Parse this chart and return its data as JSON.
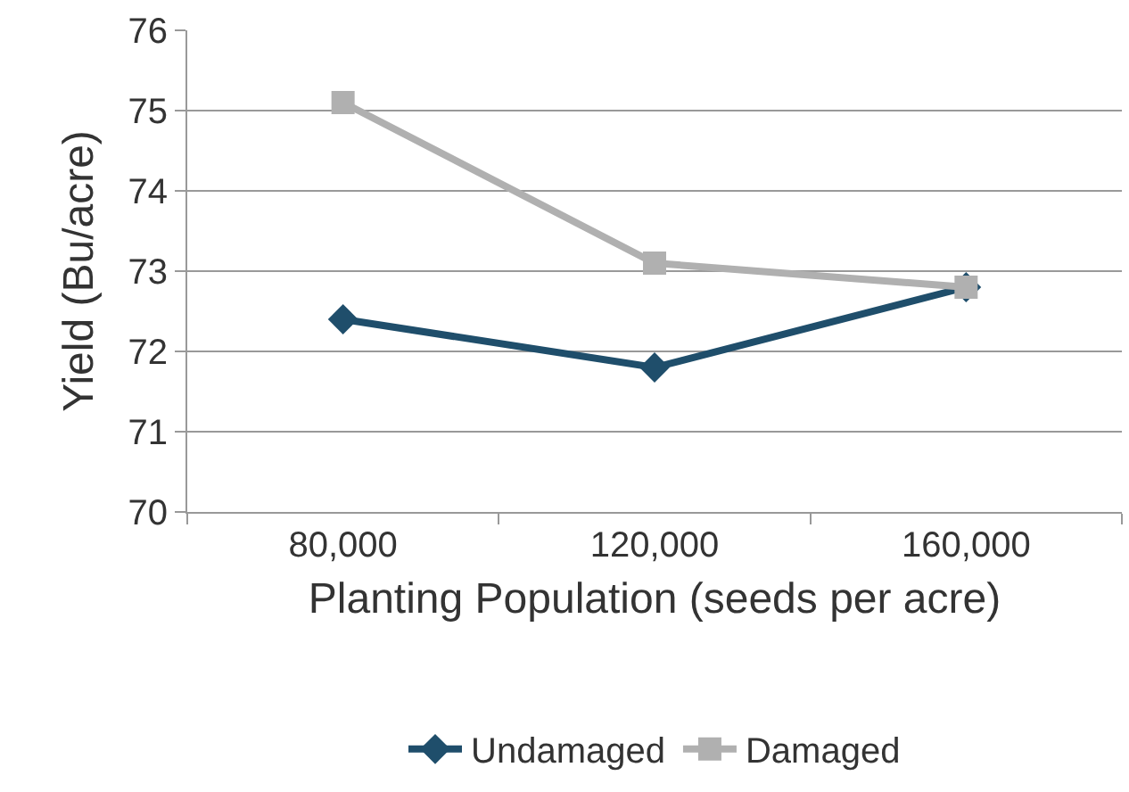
{
  "chart_data": {
    "type": "line",
    "xlabel": "Planting Population (seeds per acre)",
    "ylabel": "Yield (Bu/acre)",
    "categories": [
      "80,000",
      "120,000",
      "160,000"
    ],
    "series": [
      {
        "name": "Undamaged",
        "color": "#1f4e6b",
        "marker": "diamond",
        "values": [
          72.4,
          71.8,
          72.8
        ]
      },
      {
        "name": "Damaged",
        "color": "#b0b0b0",
        "marker": "square",
        "values": [
          75.1,
          73.1,
          72.8
        ]
      }
    ],
    "ylim": [
      70,
      76
    ],
    "yticks": [
      70,
      71,
      72,
      73,
      74,
      75,
      76
    ],
    "grid": "y",
    "legend": "bottom",
    "line_style": "solid"
  }
}
